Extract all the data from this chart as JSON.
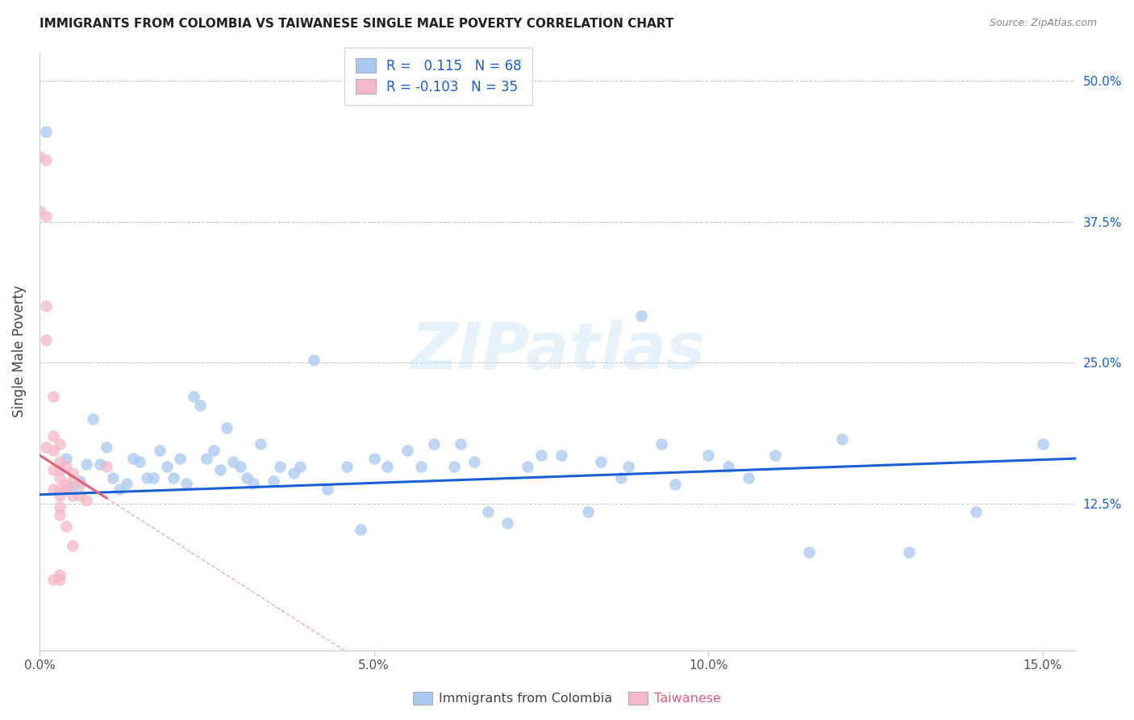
{
  "title": "IMMIGRANTS FROM COLOMBIA VS TAIWANESE SINGLE MALE POVERTY CORRELATION CHART",
  "source": "Source: ZipAtlas.com",
  "legend_label_colombia": "Immigrants from Colombia",
  "legend_label_taiwanese": "Taiwanese",
  "ylabel": "Single Male Poverty",
  "xlim": [
    0.0,
    0.155
  ],
  "ylim": [
    -0.005,
    0.525
  ],
  "ytick_vals": [
    0.125,
    0.25,
    0.375,
    0.5
  ],
  "ytick_labels": [
    "12.5%",
    "25.0%",
    "37.5%",
    "50.0%"
  ],
  "xtick_vals": [
    0.0,
    0.05,
    0.1,
    0.15
  ],
  "xtick_labels": [
    "0.0%",
    "5.0%",
    "10.0%",
    "15.0%"
  ],
  "R_colombia": 0.115,
  "N_colombia": 68,
  "R_taiwanese": -0.103,
  "N_taiwanese": 35,
  "color_colombia": "#a8c8f0",
  "color_taiwanese": "#f4b8c8",
  "line_color_colombia": "#1a5fd4",
  "line_color_taiwanese": "#e0607a",
  "watermark_text": "ZIPatlas",
  "colombia_x": [
    0.001,
    0.004,
    0.005,
    0.006,
    0.007,
    0.008,
    0.009,
    0.01,
    0.011,
    0.012,
    0.013,
    0.014,
    0.015,
    0.016,
    0.017,
    0.018,
    0.019,
    0.02,
    0.021,
    0.022,
    0.023,
    0.024,
    0.025,
    0.026,
    0.027,
    0.028,
    0.029,
    0.03,
    0.031,
    0.032,
    0.033,
    0.035,
    0.036,
    0.038,
    0.039,
    0.041,
    0.043,
    0.046,
    0.048,
    0.05,
    0.052,
    0.055,
    0.057,
    0.059,
    0.062,
    0.063,
    0.065,
    0.067,
    0.07,
    0.073,
    0.075,
    0.078,
    0.082,
    0.084,
    0.087,
    0.088,
    0.09,
    0.093,
    0.095,
    0.1,
    0.103,
    0.106,
    0.11,
    0.115,
    0.12,
    0.13,
    0.14,
    0.15
  ],
  "colombia_y": [
    0.455,
    0.165,
    0.14,
    0.145,
    0.16,
    0.2,
    0.16,
    0.175,
    0.148,
    0.138,
    0.143,
    0.165,
    0.162,
    0.148,
    0.148,
    0.172,
    0.158,
    0.148,
    0.165,
    0.143,
    0.22,
    0.212,
    0.165,
    0.172,
    0.155,
    0.192,
    0.162,
    0.158,
    0.148,
    0.143,
    0.178,
    0.145,
    0.158,
    0.152,
    0.158,
    0.252,
    0.138,
    0.158,
    0.102,
    0.165,
    0.158,
    0.172,
    0.158,
    0.178,
    0.158,
    0.178,
    0.162,
    0.118,
    0.108,
    0.158,
    0.168,
    0.168,
    0.118,
    0.162,
    0.148,
    0.158,
    0.292,
    0.178,
    0.142,
    0.168,
    0.158,
    0.148,
    0.168,
    0.082,
    0.182,
    0.082,
    0.118,
    0.178
  ],
  "taiwanese_x": [
    0.001,
    0.001,
    0.001,
    0.001,
    0.002,
    0.002,
    0.002,
    0.002,
    0.002,
    0.003,
    0.003,
    0.003,
    0.003,
    0.003,
    0.003,
    0.003,
    0.003,
    0.003,
    0.004,
    0.004,
    0.004,
    0.004,
    0.005,
    0.005,
    0.005,
    0.005,
    0.006,
    0.006,
    0.007,
    0.01,
    0.001,
    0.002,
    0.0,
    0.0,
    0.003
  ],
  "taiwanese_y": [
    0.43,
    0.38,
    0.3,
    0.27,
    0.22,
    0.185,
    0.058,
    0.172,
    0.155,
    0.178,
    0.162,
    0.155,
    0.148,
    0.138,
    0.132,
    0.122,
    0.115,
    0.058,
    0.158,
    0.142,
    0.138,
    0.105,
    0.152,
    0.145,
    0.132,
    0.088,
    0.142,
    0.132,
    0.128,
    0.158,
    0.175,
    0.138,
    0.433,
    0.385,
    0.062
  ]
}
